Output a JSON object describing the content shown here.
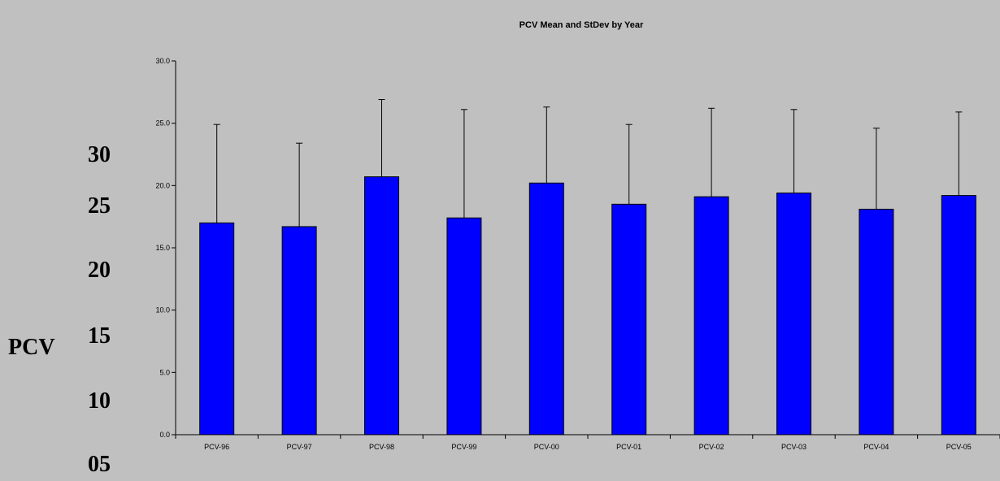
{
  "outer_axis": {
    "label": "PCV",
    "ticks": [
      "30",
      "25",
      "20",
      "15",
      "10",
      "05"
    ]
  },
  "chart_data": {
    "type": "bar",
    "title": "PCV Mean and StDev by Year",
    "categories": [
      "PCV-96",
      "PCV-97",
      "PCV-98",
      "PCV-99",
      "PCV-00",
      "PCV-01",
      "PCV-02",
      "PCV-03",
      "PCV-04",
      "PCV-05"
    ],
    "series": [
      {
        "values": [
          17.0,
          16.7,
          20.7,
          17.4,
          20.2,
          18.5,
          19.1,
          19.4,
          18.1,
          19.2
        ],
        "error_plus": [
          7.9,
          6.7,
          6.2,
          8.7,
          6.1,
          6.4,
          7.1,
          6.7,
          6.5,
          6.7
        ]
      }
    ],
    "ylim": [
      0,
      30
    ],
    "y_ticks": [
      "0.0",
      "5.0",
      "10.0",
      "15.0",
      "20.0",
      "25.0",
      "30.0"
    ],
    "bar_color": "#0000ff",
    "grid": false,
    "xlabel": "",
    "ylabel": ""
  }
}
